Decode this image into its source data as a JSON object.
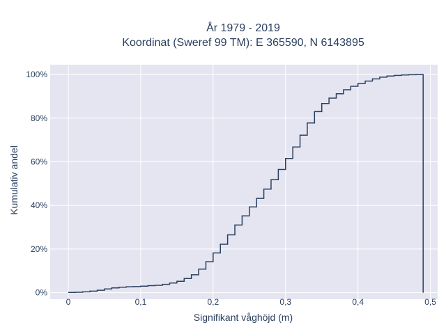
{
  "chart_data": {
    "type": "line",
    "line_shape": "step",
    "title": [
      "År 1979 - 2019",
      "Koordinat (Sweref 99 TM): E 365590, N 6143895"
    ],
    "xlabel": "Signifikant våghöjd (m)",
    "ylabel": "Kumulativ andel",
    "xlim": [
      -0.025,
      0.51
    ],
    "ylim": [
      -0.03,
      1.045
    ],
    "x_ticks": [
      0,
      0.1,
      0.2,
      0.3,
      0.4,
      0.5
    ],
    "x_tick_labels": [
      "0",
      "0,1",
      "0,2",
      "0,3",
      "0,4",
      "0,5"
    ],
    "y_ticks": [
      0,
      0.2,
      0.4,
      0.6,
      0.8,
      1.0
    ],
    "y_tick_labels": [
      "0%",
      "20%",
      "40%",
      "60%",
      "80%",
      "100%"
    ],
    "grid": true,
    "colors": {
      "plot_bg": "#e5e5f2",
      "grid": "#ffffff",
      "line": "#2a3f5f",
      "text": "#2a3f5f"
    },
    "series": [
      {
        "x": [
          0,
          0.01,
          0.02,
          0.03,
          0.04,
          0.05,
          0.06,
          0.07,
          0.08,
          0.09,
          0.1,
          0.11,
          0.12,
          0.13,
          0.14,
          0.15,
          0.16,
          0.17,
          0.18,
          0.19,
          0.2,
          0.21,
          0.22,
          0.23,
          0.24,
          0.25,
          0.26,
          0.27,
          0.28,
          0.29,
          0.3,
          0.31,
          0.32,
          0.33,
          0.34,
          0.35,
          0.36,
          0.37,
          0.38,
          0.39,
          0.4,
          0.41,
          0.42,
          0.43,
          0.44,
          0.45,
          0.46,
          0.47,
          0.48,
          0.49
        ],
        "y": [
          0.001,
          0.002,
          0.004,
          0.007,
          0.011,
          0.017,
          0.022,
          0.025,
          0.027,
          0.028,
          0.03,
          0.032,
          0.034,
          0.038,
          0.044,
          0.052,
          0.065,
          0.082,
          0.108,
          0.142,
          0.182,
          0.222,
          0.265,
          0.31,
          0.352,
          0.393,
          0.432,
          0.475,
          0.518,
          0.565,
          0.615,
          0.668,
          0.722,
          0.778,
          0.83,
          0.867,
          0.892,
          0.912,
          0.93,
          0.946,
          0.959,
          0.97,
          0.98,
          0.988,
          0.993,
          0.996,
          0.998,
          0.999,
          1.0,
          1.0
        ],
        "drop_to_zero_at": 0.49
      }
    ]
  }
}
